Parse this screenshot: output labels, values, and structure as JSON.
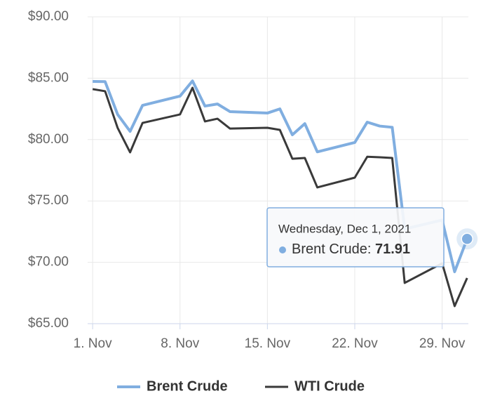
{
  "chart_data": {
    "type": "line",
    "x": [
      1,
      2,
      3,
      4,
      5,
      8,
      9,
      10,
      11,
      12,
      15,
      16,
      17,
      18,
      19,
      22,
      23,
      24,
      25,
      26,
      29,
      30,
      31
    ],
    "xlim": [
      0.6,
      31.1
    ],
    "xticks": [
      {
        "value": 1,
        "label": "1. Nov"
      },
      {
        "value": 8,
        "label": "8. Nov"
      },
      {
        "value": 15,
        "label": "15. Nov"
      },
      {
        "value": 22,
        "label": "22. Nov"
      },
      {
        "value": 29,
        "label": "29. Nov"
      }
    ],
    "ylim": [
      65,
      90
    ],
    "yticks": [
      {
        "value": 65,
        "label": "$65.00"
      },
      {
        "value": 70,
        "label": "$70.00"
      },
      {
        "value": 75,
        "label": "$75.00"
      },
      {
        "value": 80,
        "label": "$80.00"
      },
      {
        "value": 85,
        "label": "$85.00"
      },
      {
        "value": 90,
        "label": "$90.00"
      }
    ],
    "grid": true,
    "legend": "bottom",
    "series": [
      {
        "name": "Brent Crude",
        "color": "#80aee0",
        "values": [
          84.74,
          84.72,
          82.05,
          80.67,
          82.79,
          83.54,
          84.78,
          82.73,
          82.9,
          82.28,
          82.16,
          82.5,
          80.39,
          81.3,
          79.0,
          79.76,
          81.42,
          81.1,
          81.0,
          72.72,
          73.44,
          69.23,
          71.91
        ]
      },
      {
        "name": "WTI Crude",
        "color": "#3a3a3a",
        "values": [
          84.11,
          83.94,
          80.96,
          78.96,
          81.36,
          82.05,
          84.22,
          81.48,
          81.7,
          80.9,
          80.96,
          80.79,
          78.44,
          78.5,
          76.1,
          76.9,
          78.6,
          78.56,
          78.5,
          68.32,
          69.92,
          66.43,
          68.72
        ]
      }
    ],
    "tooltip": {
      "title": "Wednesday, Dec 1, 2021"
    }
  }
}
